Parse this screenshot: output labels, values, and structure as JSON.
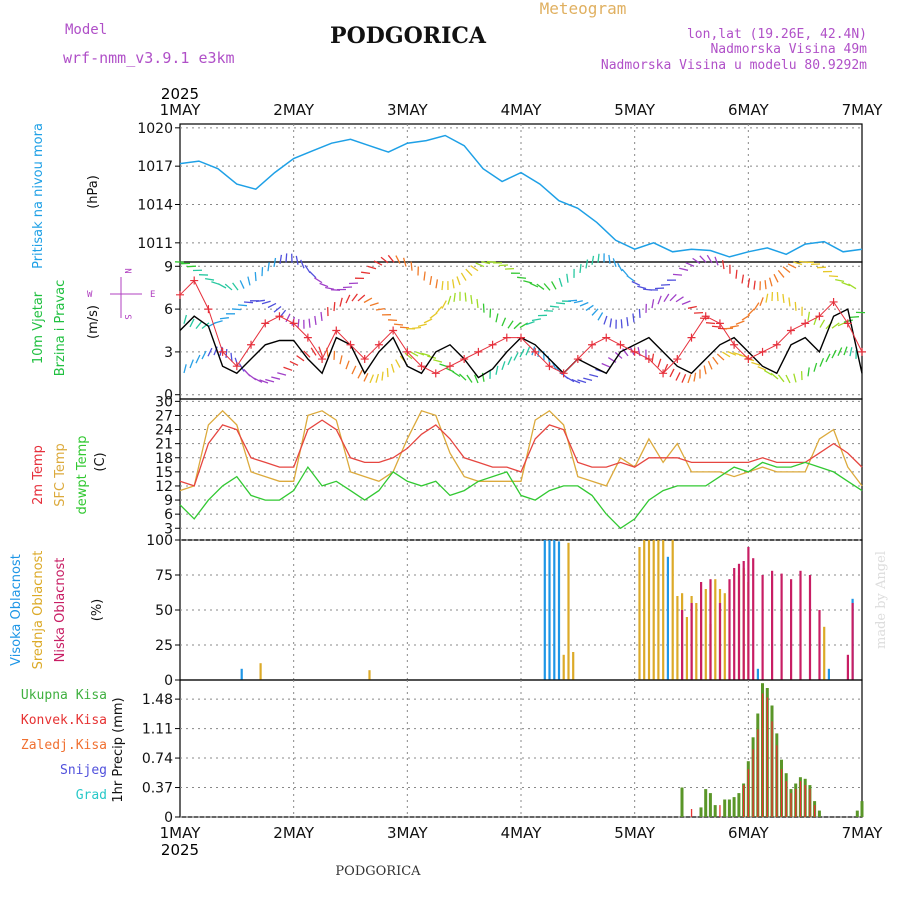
{
  "header": {
    "model_label": "Model",
    "model_name": "wrf-nmm_v3.9.1 e3km",
    "title": "PODGORICA",
    "product": "Meteogram",
    "coords": "lon,lat (19.26E, 42.4N)",
    "elevation": "Nadmorska Visina 49m",
    "model_elevation": "Nadmorska Visina u modelu 80.9292m"
  },
  "footer": {
    "station": "PODGORICA",
    "credit": "made by Angel"
  },
  "colors": {
    "pressure": "#1ea0e6",
    "wind_line": "#000000",
    "gust": "#e6303c",
    "temp2m": "#e64640",
    "sfc_temp": "#dcaa3c",
    "dewpt": "#32c832",
    "cloud_high": "#1e96e6",
    "cloud_mid": "#dcaa28",
    "cloud_low": "#c81e64",
    "precip_total": "#5a9628",
    "precip_conv": "#e63232",
    "snow": "#5050dc",
    "hail": "#28c8c8",
    "compass": "#b040c0",
    "grid": "#888888"
  },
  "time_axis": {
    "year": "2025",
    "days": [
      "1MAY",
      "2MAY",
      "3MAY",
      "4MAY",
      "5MAY",
      "6MAY",
      "7MAY"
    ]
  },
  "wind_compass": {
    "n": "N",
    "s": "S",
    "e": "E",
    "w": "W"
  },
  "chart_data": [
    {
      "id": "pressure",
      "type": "line",
      "ylabel": "Pritisak na nivou mora",
      "unit": "(hPa)",
      "yticks": [
        "1020",
        "1017",
        "1014",
        "1011"
      ],
      "ylim": [
        1009.5,
        1020.3
      ],
      "series": [
        {
          "name": "Sea level pressure",
          "x": [
            0,
            4,
            8,
            12,
            16,
            20,
            24,
            28,
            32,
            36,
            40,
            44,
            48,
            52,
            56,
            60,
            64,
            68,
            72,
            76,
            80,
            84,
            88,
            92,
            96,
            100,
            104,
            108,
            112,
            116,
            120,
            124,
            128,
            132,
            136,
            140,
            144
          ],
          "values": [
            1017.2,
            1017.4,
            1016.8,
            1015.6,
            1015.2,
            1016.5,
            1017.6,
            1018.2,
            1018.8,
            1019.1,
            1018.6,
            1018.1,
            1018.8,
            1019.0,
            1019.4,
            1018.6,
            1016.8,
            1015.8,
            1016.5,
            1015.6,
            1014.3,
            1013.7,
            1012.6,
            1011.2,
            1010.5,
            1011.0,
            1010.3,
            1010.5,
            1010.4,
            1009.9,
            1010.3,
            1010.6,
            1010.1,
            1010.9,
            1011.1,
            1010.3,
            1010.5
          ]
        }
      ]
    },
    {
      "id": "wind",
      "type": "line",
      "ylabel_1": "10m Vjetar",
      "ylabel_2": "Brzina i Pravac",
      "unit": "(m/s)",
      "yticks": [
        "9",
        "6",
        "3",
        "0"
      ],
      "ylim": [
        -0.3,
        9.3
      ],
      "series": [
        {
          "name": "Wind speed",
          "x": [
            0,
            3,
            6,
            9,
            12,
            15,
            18,
            21,
            24,
            27,
            30,
            33,
            36,
            39,
            42,
            45,
            48,
            51,
            54,
            57,
            60,
            63,
            66,
            69,
            72,
            75,
            78,
            81,
            84,
            87,
            90,
            93,
            96,
            99,
            102,
            105,
            108,
            111,
            114,
            117,
            120,
            123,
            126,
            129,
            132,
            135,
            138,
            141,
            144
          ],
          "values": [
            4.5,
            5.5,
            4.8,
            2.0,
            1.5,
            2.5,
            3.5,
            3.8,
            3.8,
            2.5,
            1.5,
            4.0,
            3.5,
            1.5,
            3.0,
            4.0,
            2.0,
            1.5,
            3.0,
            3.5,
            2.5,
            1.2,
            1.8,
            3.0,
            4.0,
            3.5,
            2.5,
            1.5,
            2.5,
            2.0,
            1.5,
            3.0,
            3.5,
            4.0,
            3.0,
            2.0,
            1.5,
            2.5,
            3.5,
            4.0,
            3.0,
            2.0,
            1.5,
            3.5,
            4.0,
            3.0,
            5.5,
            6.0,
            1.5
          ]
        },
        {
          "name": "Wind gust",
          "x": [
            0,
            3,
            6,
            9,
            12,
            15,
            18,
            21,
            24,
            27,
            30,
            33,
            36,
            39,
            42,
            45,
            48,
            51,
            54,
            57,
            60,
            63,
            66,
            69,
            72,
            75,
            78,
            81,
            84,
            87,
            90,
            93,
            96,
            99,
            102,
            105,
            108,
            111,
            114,
            117,
            120,
            123,
            126,
            129,
            132,
            135,
            138,
            141,
            144
          ],
          "values": [
            7.0,
            8.0,
            6.0,
            3.0,
            2.0,
            3.5,
            5.0,
            5.5,
            5.0,
            4.0,
            2.5,
            4.5,
            3.5,
            2.5,
            3.5,
            4.5,
            3.0,
            2.0,
            1.5,
            2.0,
            2.5,
            3.0,
            3.5,
            4.0,
            4.0,
            3.0,
            2.0,
            1.5,
            2.5,
            3.5,
            4.0,
            3.5,
            3.0,
            2.5,
            1.5,
            2.5,
            4.0,
            5.5,
            5.0,
            3.5,
            2.5,
            3.0,
            3.5,
            4.5,
            5.0,
            5.5,
            6.5,
            5.0,
            3.0
          ]
        }
      ]
    },
    {
      "id": "temperature",
      "type": "line",
      "ylabel_1": "2m Temp",
      "ylabel_2": "SFC Temp",
      "ylabel_3": "dewpt Temp",
      "unit": "(C)",
      "yticks": [
        "30",
        "27",
        "24",
        "21",
        "18",
        "15",
        "12",
        "9",
        "6",
        "3"
      ],
      "ylim": [
        0.5,
        30.5
      ],
      "series": [
        {
          "name": "2m Temp",
          "x": [
            0,
            3,
            6,
            9,
            12,
            15,
            18,
            21,
            24,
            27,
            30,
            33,
            36,
            39,
            42,
            45,
            48,
            51,
            54,
            57,
            60,
            63,
            66,
            69,
            72,
            75,
            78,
            81,
            84,
            87,
            90,
            93,
            96,
            99,
            102,
            105,
            108,
            111,
            114,
            117,
            120,
            123,
            126,
            129,
            132,
            135,
            138,
            141,
            144
          ],
          "values": [
            13,
            12,
            21,
            25,
            24,
            18,
            17,
            16,
            16,
            24,
            26,
            24,
            18,
            17,
            17,
            18,
            20,
            23,
            25,
            22,
            18,
            17,
            16,
            16,
            15,
            22,
            25,
            24,
            17,
            16,
            16,
            17,
            16,
            18,
            18,
            18,
            17,
            17,
            17,
            17,
            17,
            18,
            17,
            17,
            17,
            19,
            21,
            19,
            16
          ]
        },
        {
          "name": "SFC Temp",
          "x": [
            0,
            3,
            6,
            9,
            12,
            15,
            18,
            21,
            24,
            27,
            30,
            33,
            36,
            39,
            42,
            45,
            48,
            51,
            54,
            57,
            60,
            63,
            66,
            69,
            72,
            75,
            78,
            81,
            84,
            87,
            90,
            93,
            96,
            99,
            102,
            105,
            108,
            111,
            114,
            117,
            120,
            123,
            126,
            129,
            132,
            135,
            138,
            141,
            144
          ],
          "values": [
            11,
            12,
            25,
            28,
            25,
            15,
            14,
            13,
            13,
            27,
            28,
            26,
            15,
            14,
            13,
            15,
            22,
            28,
            27,
            19,
            14,
            13,
            13,
            13,
            13,
            26,
            28,
            25,
            14,
            13,
            12,
            18,
            16,
            22,
            17,
            21,
            15,
            15,
            15,
            14,
            15,
            16,
            15,
            15,
            15,
            22,
            24,
            16,
            12
          ]
        },
        {
          "name": "dewpt Temp",
          "x": [
            0,
            3,
            6,
            9,
            12,
            15,
            18,
            21,
            24,
            27,
            30,
            33,
            36,
            39,
            42,
            45,
            48,
            51,
            54,
            57,
            60,
            63,
            66,
            69,
            72,
            75,
            78,
            81,
            84,
            87,
            90,
            93,
            96,
            99,
            102,
            105,
            108,
            111,
            114,
            117,
            120,
            123,
            126,
            129,
            132,
            135,
            138,
            141,
            144
          ],
          "values": [
            8,
            5,
            9,
            12,
            14,
            10,
            9,
            9,
            11,
            16,
            12,
            13,
            11,
            9,
            11,
            15,
            13,
            12,
            13,
            10,
            11,
            13,
            14,
            15,
            10,
            9,
            11,
            12,
            12,
            10,
            6,
            3,
            5,
            9,
            11,
            12,
            12,
            12,
            14,
            16,
            15,
            17,
            16,
            16,
            17,
            16,
            15,
            13,
            11
          ]
        }
      ]
    },
    {
      "id": "clouds",
      "type": "bar",
      "ylabel_1": "Visoka Oblacnost",
      "ylabel_2": "Srednja Oblacnost",
      "ylabel_3": "Niska Oblacnost",
      "unit": "(%)",
      "yticks": [
        "100",
        "75",
        "50",
        "25",
        "0"
      ],
      "ylim": [
        0,
        100
      ],
      "series": [
        {
          "name": "Visoka Oblacnost",
          "x": [
            13,
            77,
            78,
            79,
            80,
            103,
            122,
            137,
            142
          ],
          "values": [
            8,
            100,
            100,
            100,
            99,
            88,
            8,
            8,
            58
          ]
        },
        {
          "name": "Srednja Oblacnost",
          "x": [
            17,
            40,
            81,
            82,
            83,
            97,
            98,
            99,
            100,
            101,
            102,
            104,
            105,
            106,
            107,
            108,
            109,
            110,
            111,
            112,
            113,
            114,
            115,
            118,
            119,
            120,
            136
          ],
          "values": [
            12,
            7,
            18,
            98,
            20,
            95,
            100,
            100,
            100,
            100,
            100,
            100,
            60,
            62,
            45,
            60,
            55,
            50,
            65,
            40,
            72,
            65,
            62,
            75,
            80,
            70,
            38
          ]
        },
        {
          "name": "Niska Oblacnost",
          "x": [
            106,
            108,
            110,
            112,
            114,
            116,
            117,
            118,
            119,
            120,
            121,
            123,
            125,
            127,
            129,
            131,
            133,
            135,
            141,
            142
          ],
          "values": [
            50,
            55,
            70,
            72,
            55,
            72,
            80,
            83,
            85,
            95,
            87,
            75,
            78,
            76,
            72,
            78,
            75,
            50,
            18,
            55
          ]
        }
      ]
    },
    {
      "id": "precip",
      "type": "bar",
      "legend": [
        "Ukupna Kisa",
        "Konvek.Kisa",
        "Zaledj.Kisa",
        "Snijeg",
        "Grad"
      ],
      "ylabel": "1hr Precip (mm)",
      "yticks": [
        "1.48",
        "1.11",
        "0.74",
        "0.37",
        "0"
      ],
      "ylim": [
        0,
        1.72
      ],
      "series": [
        {
          "name": "Ukupna Kisa",
          "x": [
            106,
            110,
            111,
            112,
            113,
            115,
            116,
            117,
            118,
            119,
            120,
            121,
            122,
            123,
            124,
            125,
            126,
            127,
            128,
            129,
            130,
            131,
            132,
            133,
            134,
            135,
            143,
            144
          ],
          "values": [
            0.37,
            0.12,
            0.35,
            0.3,
            0.15,
            0.22,
            0.22,
            0.25,
            0.3,
            0.42,
            0.7,
            1.0,
            1.3,
            1.68,
            1.62,
            1.4,
            1.05,
            0.72,
            0.55,
            0.35,
            0.42,
            0.5,
            0.48,
            0.4,
            0.2,
            0.08,
            0.08,
            0.2
          ]
        },
        {
          "name": "Konvek.Kisa",
          "x": [
            108,
            114,
            119,
            120,
            121,
            122,
            123,
            124,
            125,
            126,
            127,
            128,
            129,
            130,
            131,
            132,
            133,
            134
          ],
          "values": [
            0.1,
            0.15,
            0.4,
            0.6,
            0.85,
            1.1,
            1.55,
            1.5,
            1.2,
            0.9,
            0.6,
            0.45,
            0.3,
            0.35,
            0.45,
            0.4,
            0.35,
            0.15
          ]
        }
      ]
    }
  ]
}
